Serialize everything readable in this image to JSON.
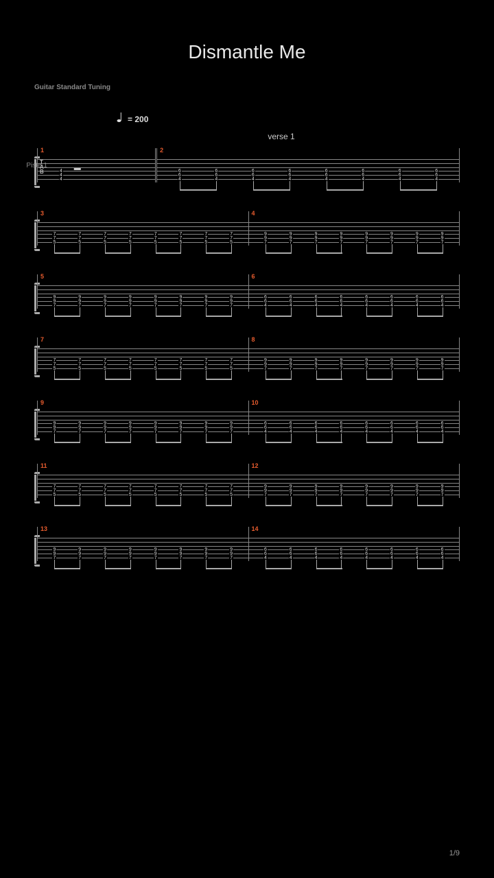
{
  "title": "Dismantle Me",
  "subtitle": "Guitar Standard Tuning",
  "tempo": "= 200",
  "section_label": "verse 1",
  "track_label": "Piste 1",
  "footer": "1/9",
  "colors": {
    "background": "#000000",
    "text_main": "#e8e8e8",
    "text_dim": "#888888",
    "staff": "#888888",
    "bar_number": "#e85c2e",
    "fret": "#dddddd"
  },
  "systems": [
    {
      "has_track_label": true,
      "measures": [
        {
          "number": 1,
          "width_ratio": 0.28,
          "has_tab_label": true,
          "single_chord": {
            "frets": [
              "4",
              "4",
              "4"
            ],
            "strings": [
              3,
              4,
              5
            ],
            "rest_after": true
          }
        },
        {
          "number": 2,
          "width_ratio": 0.72,
          "double_bar_start": true,
          "eighth_groups": 4,
          "chord_frets": [
            "6",
            "6",
            "4"
          ],
          "chord_strings": [
            3,
            4,
            5
          ]
        }
      ]
    },
    {
      "measures": [
        {
          "number": 3,
          "eighth_groups": 4,
          "chord_frets": [
            "7",
            "7",
            "5"
          ],
          "chord_strings": [
            3,
            4,
            5
          ]
        },
        {
          "number": 4,
          "eighth_groups": 4,
          "chord_frets": [
            "9",
            "9",
            "7"
          ],
          "chord_strings": [
            3,
            4,
            5
          ]
        }
      ]
    },
    {
      "measures": [
        {
          "number": 5,
          "eighth_groups": 4,
          "chord_frets": [
            "9",
            "9",
            "7"
          ],
          "chord_strings": [
            3,
            4,
            5
          ]
        },
        {
          "number": 6,
          "eighth_groups": 4,
          "chord_frets": [
            "6",
            "6",
            "4"
          ],
          "chord_strings": [
            3,
            4,
            5
          ]
        }
      ]
    },
    {
      "measures": [
        {
          "number": 7,
          "eighth_groups": 4,
          "chord_frets": [
            "7",
            "7",
            "5"
          ],
          "chord_strings": [
            3,
            4,
            5
          ]
        },
        {
          "number": 8,
          "eighth_groups": 4,
          "chord_frets": [
            "9",
            "9",
            "7"
          ],
          "chord_strings": [
            3,
            4,
            5
          ]
        }
      ]
    },
    {
      "measures": [
        {
          "number": 9,
          "eighth_groups": 4,
          "chord_frets": [
            "9",
            "9",
            "7"
          ],
          "chord_strings": [
            3,
            4,
            5
          ]
        },
        {
          "number": 10,
          "eighth_groups": 4,
          "chord_frets": [
            "6",
            "6",
            "4"
          ],
          "chord_strings": [
            3,
            4,
            5
          ]
        }
      ]
    },
    {
      "measures": [
        {
          "number": 11,
          "eighth_groups": 4,
          "chord_frets": [
            "7",
            "7",
            "5"
          ],
          "chord_strings": [
            3,
            4,
            5
          ]
        },
        {
          "number": 12,
          "eighth_groups": 4,
          "chord_frets": [
            "9",
            "9",
            "7"
          ],
          "chord_strings": [
            3,
            4,
            5
          ]
        }
      ]
    },
    {
      "measures": [
        {
          "number": 13,
          "eighth_groups": 4,
          "chord_frets": [
            "9",
            "9",
            "7"
          ],
          "chord_strings": [
            3,
            4,
            5
          ]
        },
        {
          "number": 14,
          "eighth_groups": 4,
          "chord_frets": [
            "6",
            "6",
            "4"
          ],
          "chord_strings": [
            3,
            4,
            5
          ]
        }
      ]
    }
  ]
}
